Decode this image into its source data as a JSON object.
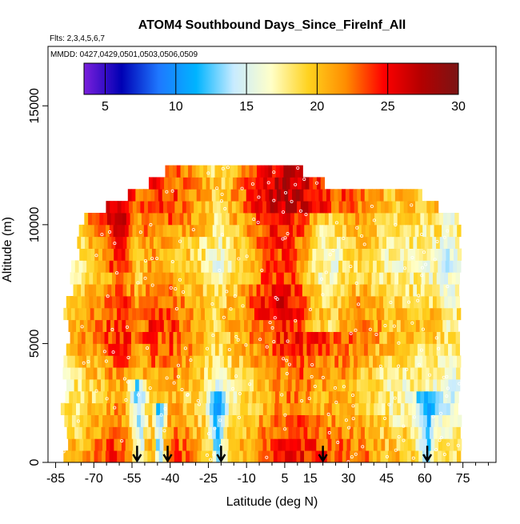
{
  "chart_data": {
    "type": "heatmap",
    "title": "ATOM4 Southbound Days_Since_FireInf_All",
    "subtitle_flights": "Flts: 2,3,4,5,6,7",
    "subtitle_dates": "MMDD: 0427,0429,0501,0503,0506,0509",
    "xlabel": "Latitude (deg N)",
    "ylabel": "Altitude (m)",
    "xlim": [
      -88,
      88
    ],
    "ylim": [
      0,
      17500
    ],
    "x_ticks": [
      -85,
      -70,
      -55,
      -40,
      -25,
      -10,
      5,
      15,
      30,
      45,
      60,
      75
    ],
    "x_tick_labels": [
      "-85",
      "-70",
      "-55",
      "-40",
      "-25",
      "-10",
      "5",
      "15",
      "30",
      "45",
      "60",
      "75"
    ],
    "y_ticks": [
      0,
      5000,
      10000,
      15000
    ],
    "y_tick_labels": [
      "0",
      "5000",
      "10000",
      "15000"
    ],
    "colorbar": {
      "min": 3.5,
      "max": 30,
      "ticks": [
        5,
        10,
        15,
        20,
        25,
        30
      ],
      "tick_labels": [
        "5",
        "10",
        "15",
        "20",
        "25",
        "30"
      ],
      "colors": [
        "#7a1fdc",
        "#0000b4",
        "#1e78ff",
        "#00b4ff",
        "#c8ebff",
        "#ffffc8",
        "#ffd21e",
        "#ff8c00",
        "#ff0000",
        "#b40000",
        "#7a1414"
      ]
    },
    "arrow_latitudes": [
      -53,
      -41,
      -20,
      20,
      61
    ],
    "grid": false,
    "legend": "none"
  }
}
